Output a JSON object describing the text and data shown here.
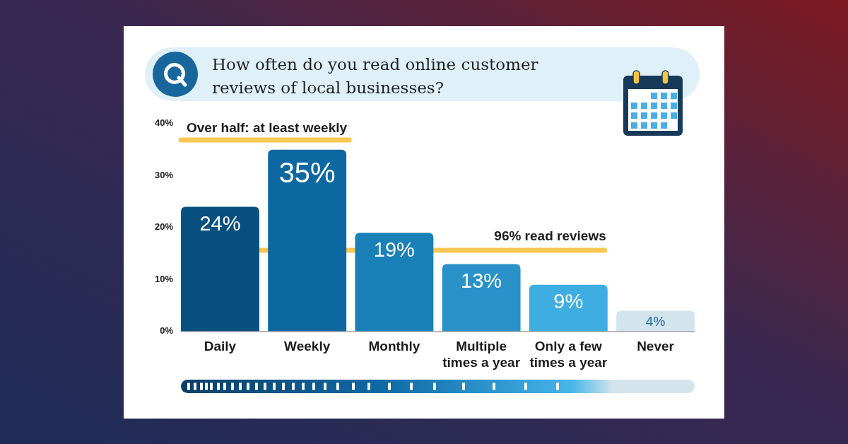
{
  "chart_data": {
    "type": "bar",
    "title": "How often do you read online customer reviews of local businesses?",
    "categories": [
      "Daily",
      "Weekly",
      "Monthly",
      "Multiple times a year",
      "Only a few times a year",
      "Never"
    ],
    "values": [
      24,
      35,
      19,
      13,
      9,
      4
    ],
    "colors": [
      "#07507f",
      "#0d68a2",
      "#1a80b8",
      "#2a92c9",
      "#3eaee2",
      "#d3e4ed"
    ],
    "value_labels": [
      "24%",
      "35%",
      "19%",
      "13%",
      "9%",
      "4%"
    ],
    "ylim": [
      0,
      40
    ],
    "yticks": [
      {
        "value": 0,
        "label": "0%"
      },
      {
        "value": 10,
        "label": "10%"
      },
      {
        "value": 20,
        "label": "20%"
      },
      {
        "value": 30,
        "label": "30%"
      },
      {
        "value": 40,
        "label": "40%"
      }
    ],
    "annotations": [
      "Over half: at least weekly",
      "96% read reviews"
    ]
  }
}
